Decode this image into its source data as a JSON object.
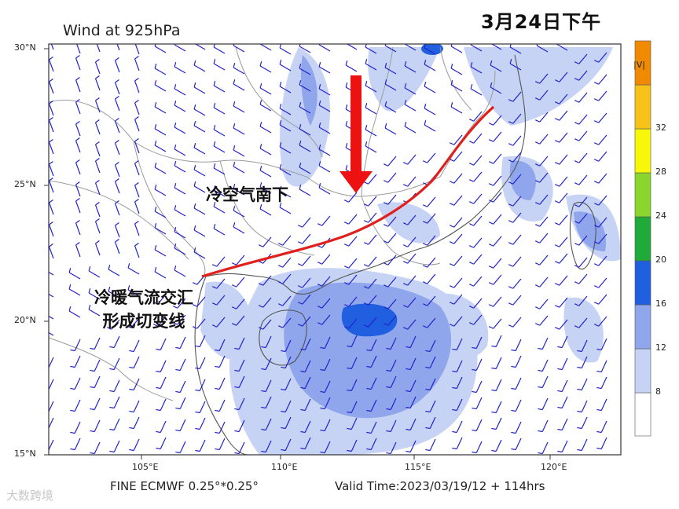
{
  "title": "Wind at 925hPa",
  "date_tag": "3月24日下午",
  "lat_labels": [
    "30°N",
    "25°N",
    "20°N",
    "15°N"
  ],
  "lon_labels": [
    "105°E",
    "110°E",
    "115°E",
    "120°E"
  ],
  "annotations": {
    "cold_air": "冷空气南下",
    "convergence_line1": "冷暖气流交汇",
    "convergence_line2": "形成切变线"
  },
  "footer": {
    "model": "FINE ECMWF 0.25°*0.25°",
    "valid_time": "Valid Time:2023/03/19/12 + 114hrs"
  },
  "colorbar": {
    "unit": "|V|",
    "ticks": [
      "8",
      "12",
      "16",
      "20",
      "24",
      "28",
      "32"
    ],
    "colors": [
      "#ffffff",
      "#c6d3f5",
      "#8fa5ec",
      "#1f5fe0",
      "#1faa3a",
      "#8ad62c",
      "#f7f70a",
      "#f7c21a",
      "#f08a00"
    ]
  },
  "styles": {
    "shear_line_color": "#e0201c",
    "arrow_color": "#ee1111",
    "barb_color": "#2222cc",
    "border_color": "#9a9a9a"
  },
  "watermark": "大数跨境"
}
